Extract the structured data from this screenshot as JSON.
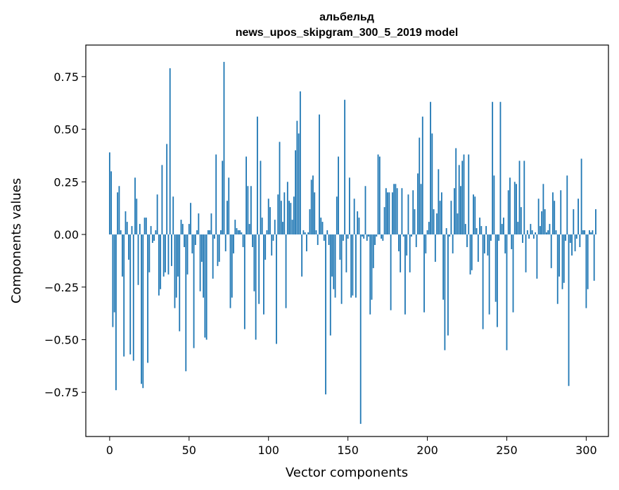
{
  "chart_data": {
    "type": "bar",
    "title_line1": "альбельд",
    "title_line2": "news_upos_skipgram_300_5_2019 model",
    "xlabel": "Vector components",
    "ylabel": "Components values",
    "xlim": [
      -15,
      314
    ],
    "ylim": [
      -0.96,
      0.9
    ],
    "xticks": [
      0,
      50,
      100,
      150,
      200,
      250,
      300
    ],
    "xtick_labels": [
      "0",
      "50",
      "100",
      "150",
      "200",
      "250",
      "300"
    ],
    "yticks": [
      -0.75,
      -0.5,
      -0.25,
      0.0,
      0.25,
      0.5,
      0.75
    ],
    "ytick_labels": [
      "−0.75",
      "−0.50",
      "−0.25",
      "0.00",
      "0.25",
      "0.50",
      "0.75"
    ],
    "bar_color": "#1f77b4",
    "values": [
      0.39,
      0.3,
      -0.44,
      -0.37,
      -0.74,
      0.2,
      0.23,
      0.02,
      -0.2,
      -0.58,
      0.11,
      0.06,
      -0.12,
      -0.57,
      0.04,
      -0.6,
      0.27,
      0.17,
      -0.24,
      0.05,
      -0.71,
      -0.73,
      0.08,
      0.08,
      -0.61,
      -0.18,
      0.04,
      -0.04,
      -0.03,
      0.02,
      0.19,
      -0.29,
      -0.26,
      0.33,
      -0.2,
      -0.18,
      0.43,
      -0.19,
      0.79,
      -0.15,
      0.18,
      -0.35,
      -0.3,
      -0.2,
      -0.46,
      0.07,
      0.05,
      -0.06,
      -0.65,
      -0.19,
      0.05,
      0.15,
      -0.09,
      -0.54,
      -0.05,
      0.02,
      0.1,
      -0.27,
      -0.13,
      -0.3,
      -0.49,
      -0.5,
      0.02,
      0.02,
      0.1,
      -0.21,
      -0.02,
      0.38,
      -0.15,
      -0.13,
      0.02,
      0.35,
      0.82,
      -0.08,
      0.16,
      0.27,
      -0.35,
      -0.3,
      -0.09,
      0.07,
      0.03,
      0.02,
      0.02,
      0.01,
      -0.06,
      -0.45,
      0.37,
      0.23,
      0.05,
      0.23,
      -0.06,
      -0.27,
      -0.5,
      0.56,
      -0.33,
      0.35,
      0.08,
      -0.38,
      -0.12,
      0.02,
      0.17,
      0.13,
      -0.1,
      -0.03,
      0.07,
      -0.52,
      0.19,
      0.44,
      0.16,
      0.06,
      0.2,
      -0.35,
      0.25,
      0.16,
      0.15,
      0.07,
      0.18,
      0.4,
      0.54,
      0.48,
      0.68,
      -0.2,
      0.02,
      0.01,
      -0.08,
      0.01,
      0.12,
      0.26,
      0.28,
      0.2,
      0.02,
      -0.05,
      0.57,
      0.08,
      0.06,
      -0.03,
      -0.76,
      0.02,
      -0.05,
      -0.48,
      -0.2,
      -0.26,
      -0.3,
      0.18,
      0.37,
      -0.12,
      -0.33,
      -0.03,
      0.64,
      -0.18,
      -0.02,
      0.27,
      -0.3,
      -0.29,
      0.17,
      -0.3,
      0.11,
      0.08,
      -0.9,
      -0.01,
      -0.02,
      0.23,
      -0.03,
      -0.01,
      -0.38,
      -0.31,
      -0.16,
      -0.05,
      -0.01,
      0.38,
      0.37,
      -0.02,
      -0.03,
      0.13,
      0.22,
      0.2,
      0.2,
      -0.36,
      0.2,
      0.24,
      0.24,
      0.22,
      -0.08,
      -0.18,
      0.22,
      -0.01,
      -0.38,
      -0.1,
      0.19,
      -0.18,
      -0.01,
      0.21,
      0.12,
      -0.06,
      0.29,
      0.46,
      0.24,
      0.56,
      -0.37,
      -0.09,
      0.02,
      0.06,
      0.63,
      0.48,
      0.12,
      -0.13,
      0.1,
      0.31,
      0.16,
      0.2,
      -0.31,
      -0.55,
      0.03,
      -0.48,
      -0.01,
      0.16,
      -0.09,
      0.22,
      0.41,
      0.1,
      0.33,
      0.23,
      0.35,
      0.38,
      0.05,
      -0.06,
      0.38,
      -0.19,
      -0.17,
      0.19,
      0.18,
      0.03,
      -0.13,
      0.08,
      0.04,
      -0.45,
      -0.09,
      0.04,
      -0.1,
      -0.38,
      -0.03,
      0.63,
      0.28,
      -0.32,
      -0.44,
      -0.03,
      0.63,
      0.05,
      0.08,
      -0.09,
      -0.55,
      0.21,
      0.27,
      -0.07,
      -0.37,
      0.25,
      0.24,
      0.06,
      0.35,
      0.13,
      -0.04,
      0.35,
      -0.18,
      0.02,
      -0.02,
      0.05,
      0.02,
      -0.02,
      0.01,
      -0.21,
      0.17,
      0.04,
      0.11,
      0.24,
      0.12,
      0.01,
      0.02,
      0.05,
      -0.16,
      0.2,
      0.16,
      0.02,
      -0.33,
      -0.2,
      0.21,
      -0.26,
      -0.23,
      -0.03,
      0.28,
      -0.72,
      -0.04,
      -0.1,
      0.12,
      -0.08,
      -0.02,
      0.17,
      -0.06,
      0.36,
      0.02,
      0.02,
      -0.35,
      -0.26,
      0.02,
      0.01,
      0.02,
      -0.22,
      0.12
    ]
  }
}
